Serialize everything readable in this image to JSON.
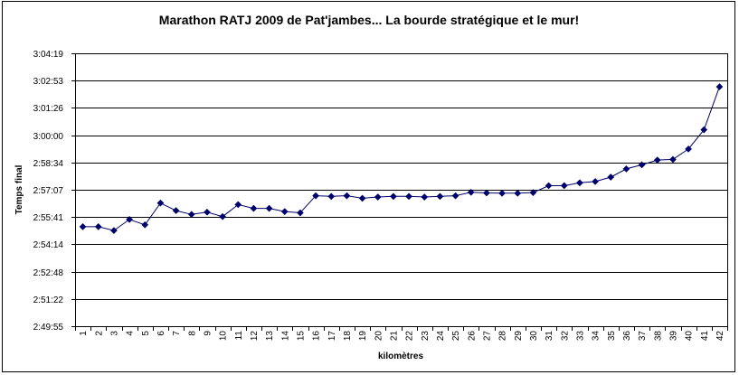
{
  "chart_data": {
    "type": "line",
    "title": "Marathon RATJ 2009 de Pat'jambes... La bourde stratégique et le mur!",
    "xlabel": "kilomètres",
    "ylabel": "Temps final",
    "categories": [
      "1",
      "2",
      "3",
      "4",
      "5",
      "6",
      "7",
      "8",
      "9",
      "10",
      "11",
      "12",
      "13",
      "14",
      "15",
      "16",
      "17",
      "18",
      "19",
      "20",
      "21",
      "22",
      "23",
      "24",
      "25",
      "26",
      "27",
      "28",
      "29",
      "30",
      "31",
      "32",
      "33",
      "34",
      "35",
      "36",
      "37",
      "38",
      "39",
      "40",
      "41",
      "42"
    ],
    "y_tick_labels": [
      "2:49:55",
      "2:51:22",
      "2:52:48",
      "2:54:14",
      "2:55:41",
      "2:57:07",
      "2:58:34",
      "3:00:00",
      "3:01:26",
      "3:02:53",
      "3:04:19"
    ],
    "y_ticks_seconds": [
      10195,
      10282,
      10368,
      10454,
      10541,
      10627,
      10714,
      10800,
      10886,
      10973,
      11059
    ],
    "ylim": [
      "2:49:55",
      "3:04:19"
    ],
    "series": [
      {
        "values": [
          "2:55:10",
          "2:55:10",
          "2:54:58",
          "2:55:33",
          "2:55:16",
          "2:56:25",
          "2:56:01",
          "2:55:49",
          "2:55:56",
          "2:55:42",
          "2:56:20",
          "2:56:08",
          "2:56:08",
          "2:55:58",
          "2:55:54",
          "2:56:48",
          "2:56:46",
          "2:56:48",
          "2:56:40",
          "2:56:44",
          "2:56:46",
          "2:56:46",
          "2:56:44",
          "2:56:46",
          "2:56:48",
          "2:56:59",
          "2:56:57",
          "2:56:56",
          "2:56:56",
          "2:56:58",
          "2:57:20",
          "2:57:20",
          "2:57:29",
          "2:57:33",
          "2:57:47",
          "2:58:13",
          "2:58:26",
          "2:58:41",
          "2:58:43",
          "2:59:16",
          "3:00:17",
          "3:02:33"
        ],
        "values_seconds": [
          10510,
          10510,
          10498,
          10533,
          10516,
          10585,
          10561,
          10549,
          10556,
          10542,
          10580,
          10568,
          10568,
          10558,
          10554,
          10608,
          10606,
          10608,
          10600,
          10604,
          10606,
          10606,
          10604,
          10606,
          10608,
          10619,
          10617,
          10616,
          10616,
          10618,
          10640,
          10640,
          10649,
          10653,
          10667,
          10693,
          10706,
          10721,
          10723,
          10756,
          10817,
          10953
        ],
        "color": "#00006b"
      }
    ],
    "grid": true,
    "gridline_color": "#000000"
  }
}
